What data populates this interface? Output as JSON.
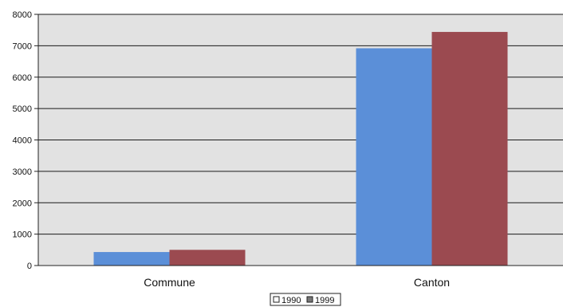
{
  "chart_data": {
    "type": "bar",
    "categories": [
      "Commune",
      "Canton"
    ],
    "series": [
      {
        "name": "1990",
        "values": [
          430,
          6920
        ],
        "color": "#5B8FD8"
      },
      {
        "name": "1999",
        "values": [
          500,
          7440
        ],
        "color": "#9B4A50"
      }
    ],
    "ylim": [
      0,
      8000
    ],
    "yticks": [
      0,
      1000,
      2000,
      3000,
      4000,
      5000,
      6000,
      7000,
      8000
    ],
    "grid": true,
    "plot_background": "#E2E2E2",
    "legend_position": "bottom-center"
  }
}
